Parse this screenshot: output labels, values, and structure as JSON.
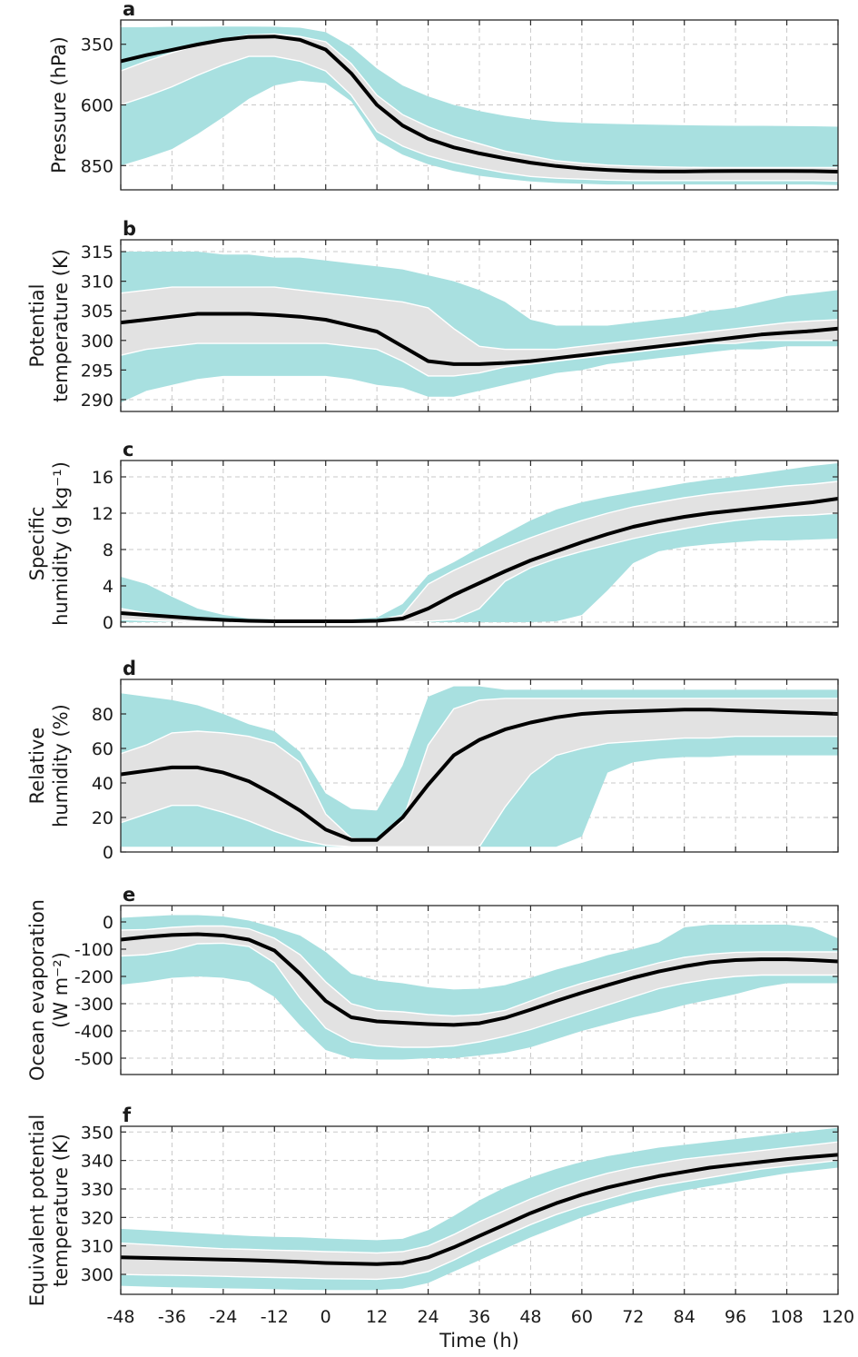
{
  "chart_data": [
    {
      "panel": "a",
      "type": "area",
      "ylabel": [
        "Pressure (hPa)"
      ],
      "ylim": [
        950,
        250
      ],
      "yticks": [
        350,
        600,
        850
      ],
      "x": [
        -48,
        -42,
        -36,
        -30,
        -24,
        -18,
        -12,
        -6,
        0,
        6,
        12,
        18,
        24,
        30,
        36,
        42,
        48,
        54,
        60,
        66,
        72,
        78,
        84,
        90,
        96,
        102,
        108,
        114,
        120
      ],
      "p10": [
        280,
        280,
        278,
        278,
        277,
        277,
        278,
        282,
        300,
        360,
        450,
        520,
        565,
        600,
        625,
        645,
        660,
        670,
        675,
        678,
        680,
        682,
        684,
        685,
        686,
        686,
        687,
        688,
        690
      ],
      "p25": [
        460,
        420,
        385,
        355,
        330,
        312,
        308,
        318,
        340,
        430,
        560,
        640,
        690,
        730,
        760,
        790,
        810,
        830,
        840,
        848,
        852,
        855,
        857,
        858,
        858,
        858,
        858,
        858,
        858
      ],
      "median": [
        420,
        395,
        373,
        351,
        332,
        320,
        318,
        332,
        372,
        470,
        600,
        685,
        740,
        775,
        800,
        820,
        838,
        852,
        862,
        868,
        872,
        874,
        874,
        873,
        872,
        872,
        872,
        873,
        875
      ],
      "p75": [
        600,
        565,
        525,
        478,
        435,
        400,
        400,
        420,
        460,
        560,
        710,
        770,
        810,
        838,
        860,
        880,
        895,
        902,
        906,
        910,
        912,
        912,
        912,
        912,
        912,
        912,
        912,
        912,
        914
      ],
      "p90": [
        850,
        818,
        782,
        720,
        650,
        575,
        520,
        500,
        510,
        585,
        745,
        805,
        845,
        872,
        892,
        905,
        915,
        922,
        925,
        928,
        928,
        928,
        928,
        928,
        928,
        928,
        928,
        928,
        930
      ]
    },
    {
      "panel": "b",
      "type": "area",
      "ylabel": [
        "Potential",
        "temperature (K)"
      ],
      "ylim": [
        288,
        317
      ],
      "yticks": [
        290,
        295,
        300,
        305,
        310,
        315
      ],
      "x": [
        -48,
        -42,
        -36,
        -30,
        -24,
        -18,
        -12,
        -6,
        0,
        6,
        12,
        18,
        24,
        30,
        36,
        42,
        48,
        54,
        60,
        66,
        72,
        78,
        84,
        90,
        96,
        102,
        108,
        114,
        120
      ],
      "p10": [
        289.5,
        291.5,
        292.5,
        293.5,
        294,
        294,
        294,
        294,
        294,
        293.5,
        292.5,
        292,
        290.5,
        290.5,
        291.5,
        292.5,
        293.5,
        294.5,
        295,
        296,
        296.5,
        297,
        297.5,
        298,
        298.5,
        298.5,
        299,
        299,
        299
      ],
      "p25": [
        297.5,
        298.5,
        299,
        299.5,
        299.5,
        299.5,
        299.5,
        299.5,
        299.5,
        299,
        298.5,
        296.5,
        294,
        294,
        294.5,
        295.5,
        296,
        296.5,
        297,
        297.5,
        298,
        298.5,
        299,
        299.5,
        299.5,
        300,
        300,
        300,
        300
      ],
      "median": [
        303,
        303.5,
        304,
        304.5,
        304.5,
        304.5,
        304.3,
        304,
        303.5,
        302.5,
        301.5,
        299,
        296.5,
        296,
        296,
        296.2,
        296.5,
        297,
        297.5,
        298,
        298.5,
        299,
        299.5,
        300,
        300.5,
        301,
        301.3,
        301.6,
        302
      ],
      "p75": [
        308,
        308.5,
        309,
        309,
        309,
        309,
        309,
        308.5,
        308,
        307.5,
        307,
        306.5,
        305.5,
        302,
        299,
        298.5,
        298.5,
        298.5,
        299,
        299.5,
        300,
        300.5,
        301,
        301.5,
        302,
        302.5,
        303,
        303.3,
        303.5
      ],
      "p90": [
        315,
        315,
        315,
        315,
        314.5,
        314.5,
        314,
        314,
        313.5,
        313,
        312.5,
        312,
        311,
        310,
        308.5,
        306.5,
        303.5,
        302.5,
        302.5,
        302.5,
        303,
        303.5,
        304,
        305,
        305.5,
        306.5,
        307.5,
        308,
        308.5
      ]
    },
    {
      "panel": "c",
      "type": "area",
      "ylabel": [
        "Specific",
        "humidity (g kg⁻¹)"
      ],
      "ylim": [
        -0.5,
        17.8
      ],
      "yticks": [
        0,
        4,
        8,
        12,
        16
      ],
      "x": [
        -48,
        -42,
        -36,
        -30,
        -24,
        -18,
        -12,
        -6,
        0,
        6,
        12,
        18,
        24,
        30,
        36,
        42,
        48,
        54,
        60,
        66,
        72,
        78,
        84,
        90,
        96,
        102,
        108,
        114,
        120
      ],
      "p10": [
        0,
        0,
        0,
        0,
        0,
        0,
        0,
        0,
        0,
        0,
        0,
        0,
        0,
        0,
        0,
        0,
        0,
        0.1,
        0.8,
        3.5,
        6.5,
        7.8,
        8.3,
        8.6,
        8.8,
        9,
        9,
        9.1,
        9.2
      ],
      "p25": [
        0.3,
        0.2,
        0.1,
        0,
        0,
        0,
        0,
        0,
        0,
        0,
        0,
        0,
        0.1,
        0.3,
        1.5,
        4.5,
        6,
        7,
        7.8,
        8.5,
        9.2,
        9.8,
        10.3,
        10.8,
        11.2,
        11.5,
        11.7,
        11.8,
        12
      ],
      "median": [
        1,
        0.8,
        0.6,
        0.4,
        0.25,
        0.15,
        0.1,
        0.1,
        0.1,
        0.1,
        0.15,
        0.4,
        1.5,
        3,
        4.3,
        5.6,
        6.8,
        7.8,
        8.8,
        9.7,
        10.5,
        11.1,
        11.6,
        12,
        12.3,
        12.6,
        12.9,
        13.2,
        13.6
      ],
      "p75": [
        1.5,
        1,
        0.6,
        0.4,
        0.2,
        0.1,
        0.1,
        0.1,
        0.1,
        0.1,
        0.2,
        0.8,
        4.2,
        5.7,
        7,
        8.2,
        9.3,
        10.3,
        11.2,
        12,
        12.7,
        13.2,
        13.7,
        14.1,
        14.4,
        14.7,
        15,
        15.2,
        15.5
      ],
      "p90": [
        5,
        4.2,
        2.8,
        1.5,
        0.8,
        0.4,
        0.3,
        0.3,
        0.3,
        0.3,
        0.5,
        2,
        5.2,
        6.6,
        8.2,
        9.7,
        11.2,
        12.4,
        13.2,
        13.8,
        14.3,
        14.8,
        15.3,
        15.7,
        16,
        16.4,
        16.8,
        17.2,
        17.5
      ]
    },
    {
      "panel": "d",
      "type": "area",
      "ylabel": [
        "Relative",
        "humidity (%)"
      ],
      "ylim": [
        0,
        100
      ],
      "yticks": [
        0,
        20,
        40,
        60,
        80
      ],
      "x": [
        -48,
        -42,
        -36,
        -30,
        -24,
        -18,
        -12,
        -6,
        0,
        6,
        12,
        18,
        24,
        30,
        36,
        42,
        48,
        54,
        60,
        66,
        72,
        78,
        84,
        90,
        96,
        102,
        108,
        114,
        120
      ],
      "p10": [
        3,
        3,
        3,
        3,
        3,
        3,
        3,
        3,
        3,
        3,
        3,
        3,
        3,
        3,
        3,
        3,
        3,
        3,
        9,
        46,
        52,
        54,
        55,
        55,
        56,
        56,
        56,
        56,
        56
      ],
      "p25": [
        17,
        22,
        27,
        27,
        23,
        18,
        12,
        7,
        4,
        3,
        3,
        3,
        3,
        3,
        3,
        26,
        45,
        56,
        60,
        63,
        64,
        65,
        66,
        66,
        67,
        67,
        67,
        67,
        67
      ],
      "median": [
        45,
        47,
        49,
        49,
        46,
        41,
        33,
        24,
        13,
        7,
        7,
        20,
        39,
        56,
        65,
        71,
        75,
        78,
        80,
        81,
        81.5,
        82,
        82.5,
        82.5,
        82,
        81.5,
        81,
        80.5,
        80
      ],
      "p75": [
        57,
        62,
        69,
        70,
        69,
        67,
        63,
        52,
        22,
        8,
        7,
        18,
        62,
        83,
        88,
        89,
        89,
        89,
        89,
        89,
        89,
        89,
        89,
        89,
        89,
        89,
        89,
        89,
        89
      ],
      "p90": [
        92,
        90,
        88,
        85,
        80,
        74,
        70,
        58,
        34,
        25,
        24,
        50,
        90,
        96,
        96,
        94,
        94,
        94,
        94,
        94,
        94,
        94,
        94,
        94,
        94,
        94,
        94,
        94,
        94
      ]
    },
    {
      "panel": "e",
      "type": "area",
      "ylabel": [
        "Ocean evaporation",
        "(W m⁻²)"
      ],
      "ylim": [
        -560,
        60
      ],
      "yticks": [
        0,
        -100,
        -200,
        -300,
        -400,
        -500
      ],
      "x": [
        -48,
        -42,
        -36,
        -30,
        -24,
        -18,
        -12,
        -6,
        0,
        6,
        12,
        18,
        24,
        30,
        36,
        42,
        48,
        54,
        60,
        66,
        72,
        78,
        84,
        90,
        96,
        102,
        108,
        114,
        120
      ],
      "p10": [
        -230,
        -220,
        -205,
        -200,
        -205,
        -220,
        -275,
        -380,
        -470,
        -500,
        -505,
        -505,
        -500,
        -500,
        -490,
        -480,
        -460,
        -430,
        -400,
        -375,
        -350,
        -330,
        -305,
        -285,
        -265,
        -240,
        -225,
        -225,
        -225
      ],
      "p25": [
        -125,
        -120,
        -105,
        -80,
        -78,
        -90,
        -150,
        -280,
        -390,
        -440,
        -455,
        -460,
        -460,
        -455,
        -440,
        -420,
        -395,
        -365,
        -335,
        -305,
        -275,
        -245,
        -225,
        -210,
        -200,
        -195,
        -195,
        -195,
        -195
      ],
      "median": [
        -65,
        -55,
        -48,
        -45,
        -50,
        -65,
        -105,
        -190,
        -290,
        -350,
        -365,
        -370,
        -375,
        -378,
        -372,
        -352,
        -322,
        -290,
        -260,
        -232,
        -205,
        -182,
        -163,
        -148,
        -140,
        -137,
        -137,
        -140,
        -145
      ],
      "p75": [
        -30,
        -28,
        -20,
        -15,
        -15,
        -25,
        -60,
        -120,
        -220,
        -300,
        -325,
        -330,
        -340,
        -345,
        -340,
        -325,
        -290,
        -255,
        -225,
        -200,
        -175,
        -150,
        -130,
        -118,
        -112,
        -110,
        -110,
        -110,
        -110
      ],
      "p90": [
        15,
        20,
        25,
        25,
        20,
        5,
        -20,
        -50,
        -110,
        -190,
        -215,
        -225,
        -240,
        -248,
        -245,
        -232,
        -205,
        -175,
        -150,
        -122,
        -100,
        -75,
        -20,
        -10,
        -10,
        -10,
        -10,
        -20,
        -60
      ]
    },
    {
      "panel": "f",
      "type": "area",
      "ylabel": [
        "Equivalent potential",
        "temperature (K)"
      ],
      "ylim": [
        293,
        352
      ],
      "yticks": [
        300,
        310,
        320,
        330,
        340,
        350
      ],
      "x": [
        -48,
        -42,
        -36,
        -30,
        -24,
        -18,
        -12,
        -6,
        0,
        6,
        12,
        18,
        24,
        30,
        36,
        42,
        48,
        54,
        60,
        66,
        72,
        78,
        84,
        90,
        96,
        102,
        108,
        114,
        120
      ],
      "p10": [
        296,
        295.7,
        295.5,
        295.3,
        295.1,
        295,
        294.8,
        294.6,
        294.5,
        294.5,
        294.5,
        295,
        297,
        301,
        305,
        309,
        313,
        316.5,
        320,
        323,
        325.5,
        327.5,
        329.5,
        331,
        332.5,
        334,
        335.5,
        336.5,
        337.5
      ],
      "p25": [
        300,
        299.8,
        299.7,
        299.5,
        299.3,
        299.1,
        298.9,
        298.7,
        298.5,
        298.4,
        298.3,
        299,
        301,
        305,
        309.5,
        313.5,
        317.5,
        321,
        324,
        326.5,
        329,
        331,
        332.5,
        334,
        335.5,
        337,
        338,
        339,
        340
      ],
      "median": [
        306,
        305.8,
        305.6,
        305.4,
        305.2,
        305,
        304.7,
        304.4,
        304,
        303.8,
        303.6,
        304,
        306,
        309.5,
        313.5,
        317.5,
        321.5,
        325,
        328,
        330.5,
        332.5,
        334.5,
        336,
        337.5,
        338.5,
        339.5,
        340.5,
        341.3,
        342
      ],
      "p75": [
        311,
        310.5,
        310,
        309.5,
        309,
        308.8,
        308.5,
        308.3,
        308,
        307.8,
        307.5,
        308,
        310,
        314,
        318.5,
        322.5,
        326.5,
        330,
        333,
        335.5,
        337.5,
        339,
        340.5,
        341.5,
        342.5,
        343.5,
        344.5,
        345.5,
        346.5
      ],
      "p90": [
        316,
        315.5,
        315,
        314.5,
        314,
        313.5,
        313.2,
        313,
        312.6,
        312.3,
        312,
        312.5,
        315.5,
        320.5,
        326,
        330.5,
        334,
        337,
        339.5,
        341.5,
        343,
        344.5,
        345.5,
        346.5,
        347.5,
        348.5,
        349.5,
        350.5,
        351.5
      ]
    }
  ],
  "x_axis": {
    "label": "Time (h)",
    "range": [
      -48,
      120
    ],
    "ticks": [
      -48,
      -36,
      -24,
      -12,
      0,
      12,
      24,
      36,
      48,
      60,
      72,
      84,
      96,
      108,
      120
    ]
  },
  "colors": {
    "outer_band": "#a8e0e0",
    "inner_band": "#e2e2e2",
    "median": "#000000"
  }
}
